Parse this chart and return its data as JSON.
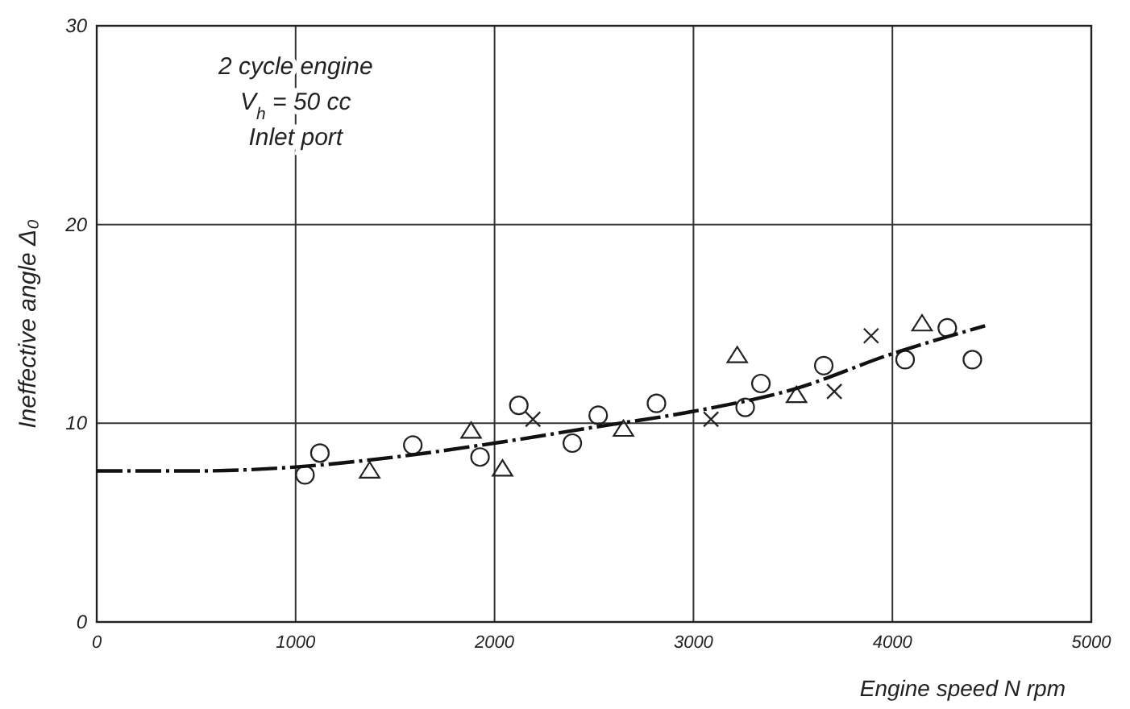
{
  "chart_data": {
    "type": "scatter",
    "xlabel": "Engine speed   N rpm",
    "ylabel": "Ineffective angle  Δ₀",
    "annotations": [
      "2 cycle engine",
      "V$_{h}$ = 50 cc",
      "Inlet port"
    ],
    "xlim": [
      0,
      5000
    ],
    "ylim": [
      0,
      30
    ],
    "xticks": [
      0,
      1000,
      2000,
      3000,
      4000,
      5000
    ],
    "yticks": [
      0,
      10,
      20,
      30
    ],
    "grid": true,
    "series": [
      {
        "marker": "circle",
        "color": "#222222",
        "x": [
          1047,
          1122,
          1589,
          1927,
          2122,
          2391,
          2521,
          2814,
          3260,
          3339,
          3655,
          4064,
          4276,
          4402
        ],
        "values": [
          7.4,
          8.5,
          8.9,
          8.3,
          10.9,
          9.0,
          10.4,
          11.0,
          10.8,
          12.0,
          12.9,
          13.2,
          14.8,
          13.2
        ]
      },
      {
        "marker": "triangle",
        "color": "#222222",
        "x": [
          1372,
          1882,
          2040,
          2648,
          3220,
          3518,
          4149
        ],
        "values": [
          7.6,
          9.6,
          7.7,
          9.7,
          13.4,
          11.4,
          15.0
        ]
      },
      {
        "marker": "cross",
        "color": "#222222",
        "x": [
          2193,
          3088,
          3708,
          3893
        ],
        "values": [
          10.2,
          10.2,
          11.6,
          14.4
        ]
      },
      {
        "type": "line",
        "marker": "none",
        "line_style": "dashed",
        "color": "#111111",
        "x": [
          0,
          500,
          1000,
          1500,
          2000,
          2500,
          3000,
          3500,
          4000,
          4466
        ],
        "values": [
          7.6,
          7.6,
          7.8,
          8.3,
          9.0,
          9.8,
          10.6,
          11.7,
          13.5,
          14.9
        ]
      }
    ]
  }
}
